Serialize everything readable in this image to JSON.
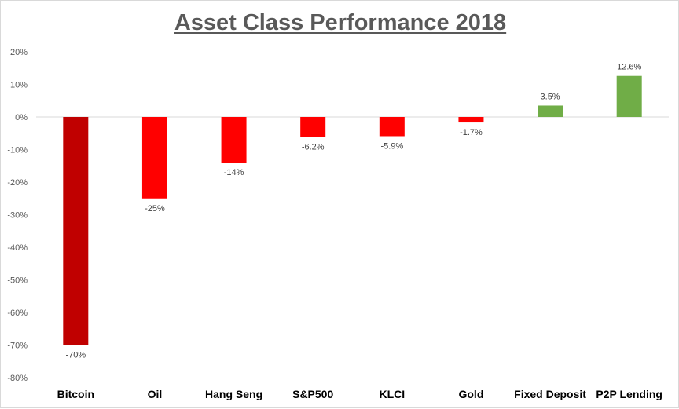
{
  "chart_data": {
    "type": "bar",
    "title": "Asset Class Performance 2018",
    "xlabel": "",
    "ylabel": "",
    "categories": [
      "Bitcoin",
      "Oil",
      "Hang Seng",
      "S&P500",
      "KLCI",
      "Gold",
      "Fixed Deposit",
      "P2P Lending"
    ],
    "values": [
      -70,
      -25,
      -14,
      -6.2,
      -5.9,
      -1.7,
      3.5,
      12.6
    ],
    "data_labels": [
      "-70%",
      "-25%",
      "-14%",
      "-6.2%",
      "-5.9%",
      "-1.7%",
      "3.5%",
      "12.6%"
    ],
    "colors": [
      "#c00000",
      "#ff0000",
      "#ff0000",
      "#ff0000",
      "#ff0000",
      "#ff0000",
      "#70ad47",
      "#70ad47"
    ],
    "ylim": [
      -80,
      20
    ],
    "yticks": [
      20,
      10,
      0,
      -10,
      -20,
      -30,
      -40,
      -50,
      -60,
      -70,
      -80
    ],
    "ytick_labels": [
      "20%",
      "10%",
      "0%",
      "-10%",
      "-20%",
      "-30%",
      "-40%",
      "-50%",
      "-60%",
      "-70%",
      "-80%"
    ],
    "grid": false,
    "legend": "none"
  }
}
